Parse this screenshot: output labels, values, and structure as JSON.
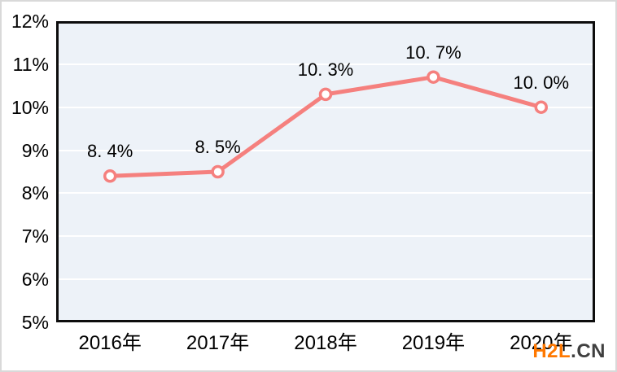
{
  "chart_data": {
    "type": "line",
    "categories": [
      "2016年",
      "2017年",
      "2018年",
      "2019年",
      "2020年"
    ],
    "values": [
      8.4,
      8.5,
      10.3,
      10.7,
      10.0
    ],
    "point_labels": [
      "8. 4%",
      "8. 5%",
      "10. 3%",
      "10. 7%",
      "10. 0%"
    ],
    "y_tick_labels": [
      "12%",
      "11%",
      "10%",
      "9%",
      "8%",
      "7%",
      "6%",
      "5%"
    ],
    "y_tick_values": [
      12,
      11,
      10,
      9,
      8,
      7,
      6,
      5
    ],
    "ylim": [
      5,
      12
    ],
    "title": "",
    "xlabel": "",
    "ylabel": "",
    "grid": "horizontal-on",
    "legend": "none",
    "line_color": "#f5807e",
    "marker_fill": "#ffffff",
    "plot_background": "#edf2f8",
    "grid_color": "#ffffff",
    "axis_border_color": "#0d0d0d",
    "text_color": "#000000"
  },
  "watermark": {
    "brand": "H2L",
    "suffix": ".CN",
    "brand_color": "#ff7800",
    "suffix_color": "#3f3f3f"
  }
}
